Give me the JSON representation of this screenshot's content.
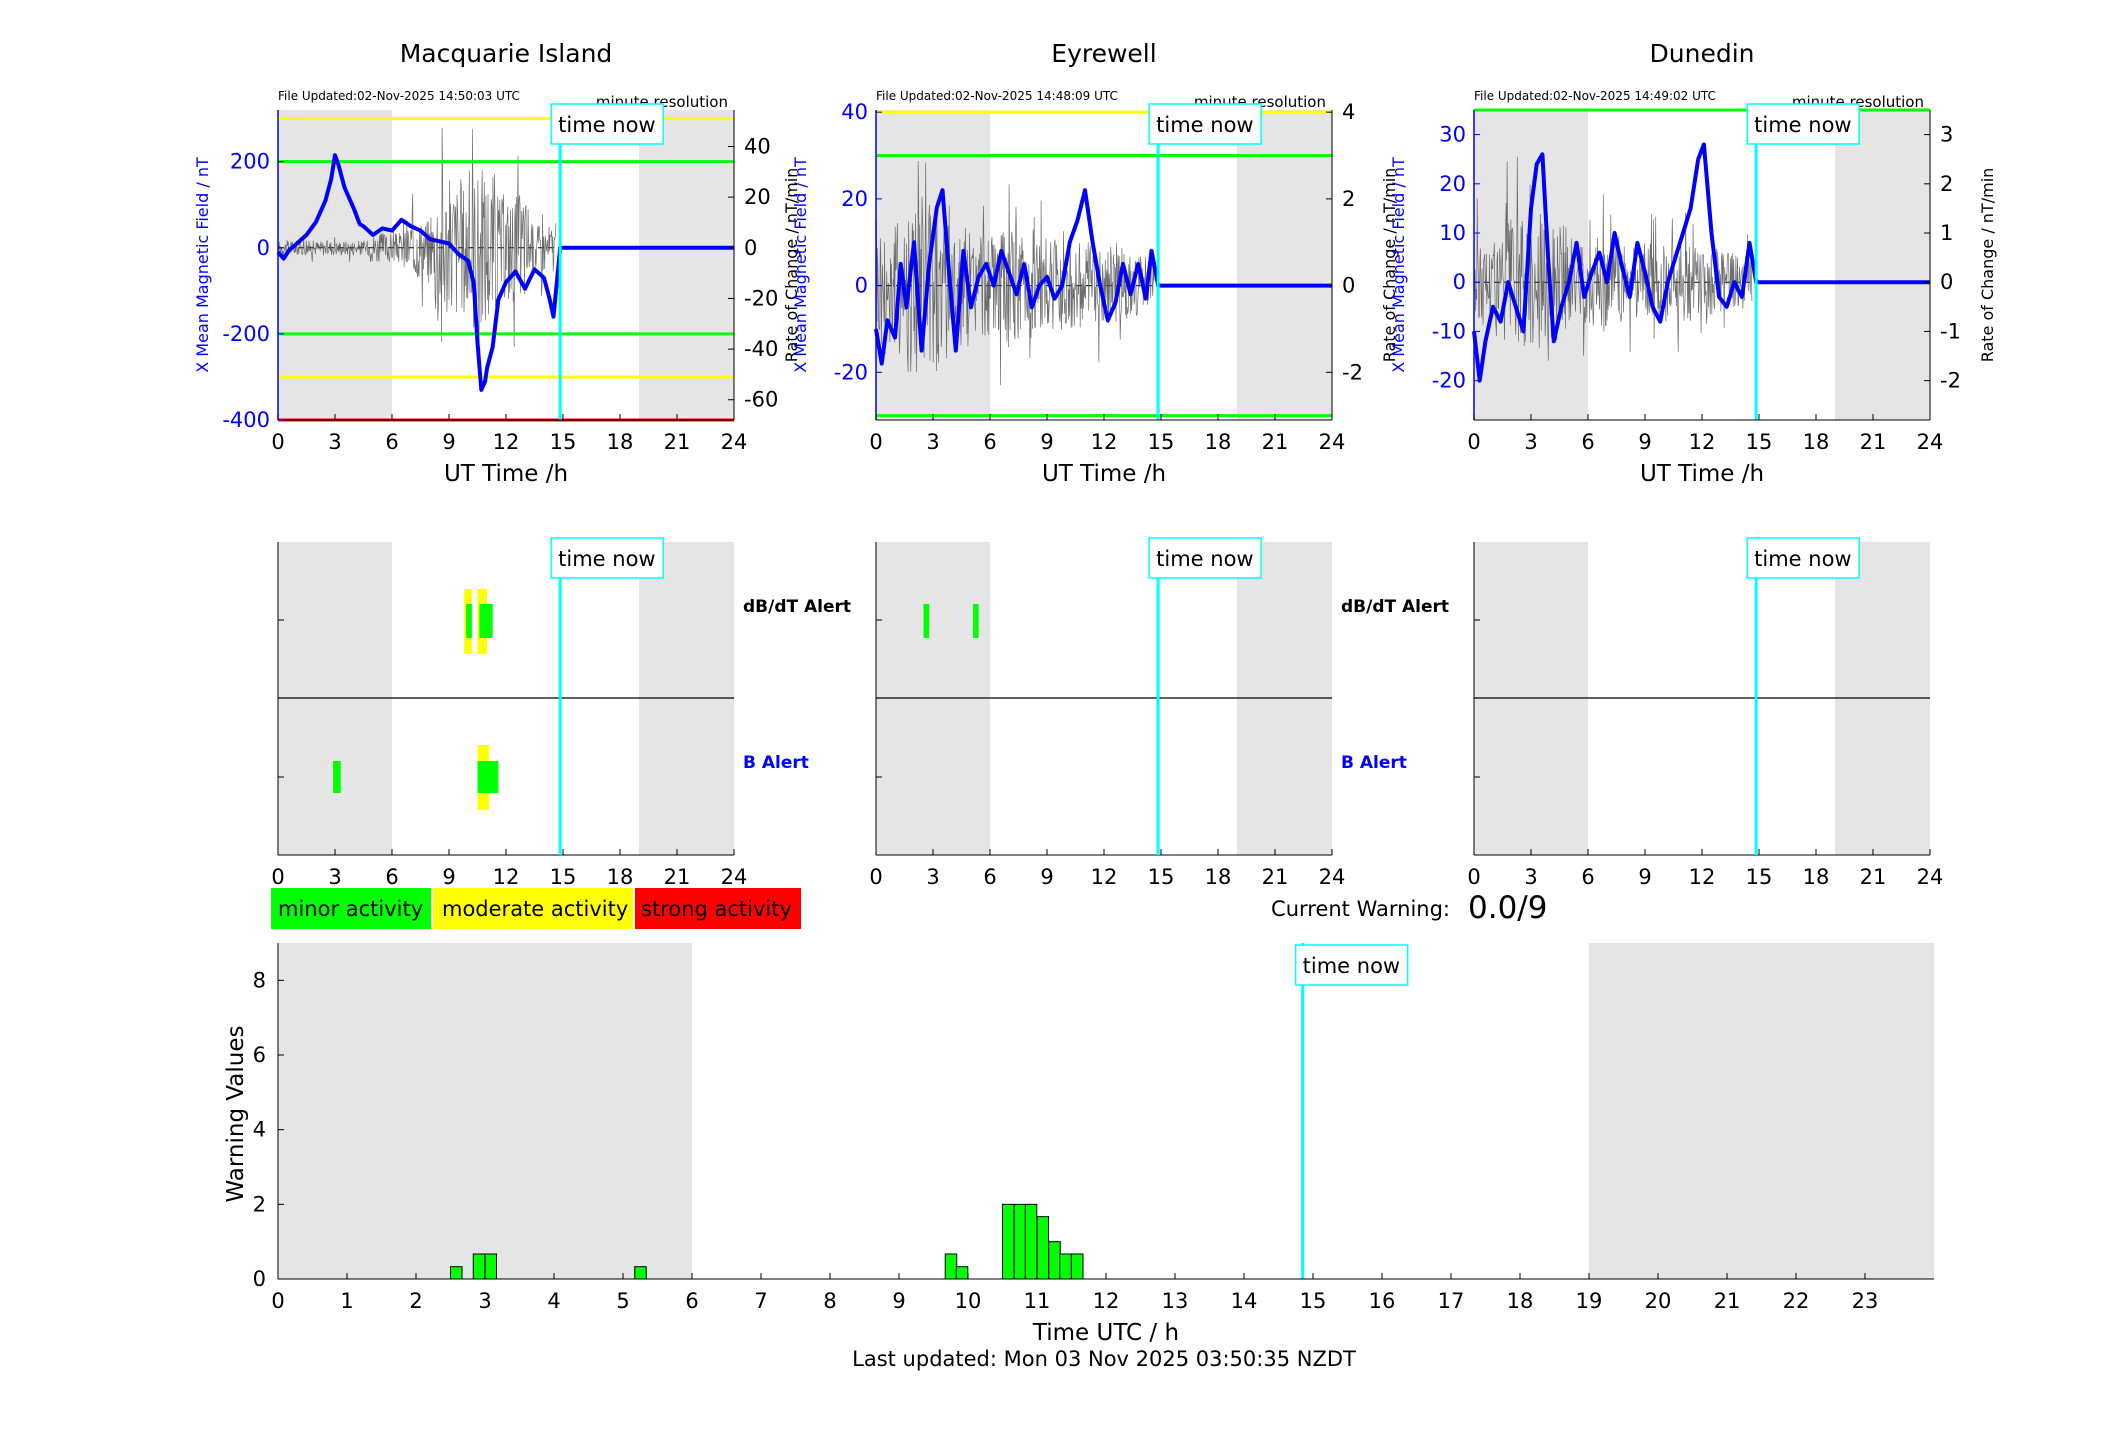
{
  "ticks_hours": [
    "0",
    "3",
    "6",
    "9",
    "12",
    "15",
    "18",
    "21",
    "24"
  ],
  "time_now_label": "time now",
  "time_now_hour": 14.85,
  "dayside_shading": [
    {
      "from": 0,
      "to": 6
    },
    {
      "from": 19,
      "to": 24
    }
  ],
  "magnetometer_panels": [
    {
      "station": "Macquarie Island",
      "file_updated": "File Updated:02-Nov-2025 14:50:03 UTC",
      "resolution": "minute resolution",
      "ylabel": "X Mean Magnetic Field / nT",
      "y2label": "Rate of Change / nT/min",
      "xlabel": "UT Time /h",
      "ylim": [
        -400,
        320
      ],
      "y2lim": [
        -68,
        54.4
      ],
      "yticks": [
        "-400",
        "-200",
        "0",
        "200"
      ],
      "yticks_values": [
        -400,
        -200,
        0,
        200
      ],
      "y2ticks": [
        "-60",
        "-40",
        "-20",
        "0",
        "20",
        "40"
      ],
      "y2ticks_values": [
        -60,
        -40,
        -20,
        0,
        20,
        40
      ],
      "threshold_lines": [
        {
          "value": 300,
          "color": "#ffff00"
        },
        {
          "value": 200,
          "color": "#00ff00"
        },
        {
          "value": -200,
          "color": "#00ff00"
        },
        {
          "value": -300,
          "color": "#ffff00"
        },
        {
          "value": -400,
          "color": "#ff0000"
        }
      ],
      "field_series": {
        "name": "",
        "x": [
          0,
          0.3,
          0.6,
          1.0,
          1.5,
          2.0,
          2.5,
          2.8,
          3.0,
          3.2,
          3.5,
          4.0,
          4.3,
          4.5,
          5.0,
          5.5,
          6.0,
          6.5,
          7.0,
          7.5,
          8.0,
          8.5,
          9.0,
          9.5,
          10.0,
          10.3,
          10.5,
          10.7,
          10.9,
          11.0,
          11.3,
          11.6,
          12.0,
          12.5,
          13.0,
          13.5,
          14.0,
          14.3,
          14.5,
          14.85,
          24
        ],
        "y": [
          -10,
          -25,
          -5,
          10,
          30,
          60,
          110,
          160,
          215,
          190,
          140,
          90,
          55,
          50,
          30,
          45,
          40,
          65,
          50,
          40,
          20,
          15,
          10,
          -15,
          -30,
          -80,
          -220,
          -330,
          -310,
          -280,
          -230,
          -120,
          -80,
          -55,
          -95,
          -50,
          -70,
          -120,
          -160,
          0,
          0
        ]
      },
      "rate_series": {
        "name": "",
        "amplitude": [
          3,
          3,
          3,
          6,
          12,
          28,
          32,
          22,
          10
        ]
      }
    },
    {
      "station": "Eyrewell",
      "file_updated": "File Updated:02-Nov-2025 14:48:09 UTC",
      "resolution": "minute resolution",
      "ylabel": "X Mean Magnetic Field / nT",
      "y2label": "Rate of Change / nT/min",
      "xlabel": "UT Time /h",
      "ylim": [
        -31,
        40.5
      ],
      "y2lim": [
        -3.1,
        4.05
      ],
      "yticks": [
        "-20",
        "0",
        "20",
        "40"
      ],
      "yticks_values": [
        -20,
        0,
        20,
        40
      ],
      "y2ticks": [
        "-2",
        "0",
        "2",
        "4"
      ],
      "y2ticks_values": [
        -2,
        0,
        2,
        4
      ],
      "threshold_lines": [
        {
          "value": 40,
          "color": "#ffff00"
        },
        {
          "value": 30,
          "color": "#00ff00"
        },
        {
          "value": -30,
          "color": "#00ff00"
        }
      ],
      "field_series": {
        "name": "",
        "x": [
          0,
          0.3,
          0.6,
          1.0,
          1.3,
          1.6,
          2.0,
          2.4,
          2.8,
          3.2,
          3.5,
          3.9,
          4.2,
          4.6,
          5.0,
          5.4,
          5.8,
          6.2,
          6.6,
          7.0,
          7.4,
          7.8,
          8.2,
          8.6,
          9.0,
          9.4,
          9.8,
          10.2,
          10.6,
          11.0,
          11.4,
          11.8,
          12.2,
          12.6,
          13.0,
          13.4,
          13.8,
          14.2,
          14.5,
          14.85,
          24
        ],
        "y": [
          -10,
          -18,
          -8,
          -12,
          5,
          -5,
          10,
          -15,
          5,
          18,
          22,
          0,
          -15,
          8,
          -5,
          2,
          5,
          0,
          8,
          3,
          -2,
          5,
          -5,
          0,
          2,
          -3,
          0,
          10,
          15,
          22,
          10,
          0,
          -8,
          -4,
          5,
          -2,
          5,
          -3,
          8,
          0,
          0
        ]
      },
      "rate_series": {
        "name": "",
        "amplitude": [
          1.6,
          2.2,
          1.4,
          1.2,
          1.3,
          1.1,
          1.0,
          0.9,
          0.7
        ]
      }
    },
    {
      "station": "Dunedin",
      "file_updated": "File Updated:02-Nov-2025 14:49:02 UTC",
      "resolution": "minute resolution",
      "ylabel": "X Mean Magnetic Field / nT",
      "y2label": "Rate of Change / nT/min",
      "xlabel": "UT Time /h",
      "ylim": [
        -28,
        35
      ],
      "y2lim": [
        -2.8,
        3.5
      ],
      "yticks": [
        "-20",
        "-10",
        "0",
        "10",
        "20",
        "30"
      ],
      "yticks_values": [
        -20,
        -10,
        0,
        10,
        20,
        30
      ],
      "y2ticks": [
        "-2",
        "-1",
        "0",
        "1",
        "2",
        "3"
      ],
      "y2ticks_values": [
        -2,
        -1,
        0,
        1,
        2,
        3
      ],
      "threshold_lines": [
        {
          "value": 35,
          "color": "#00ff00"
        }
      ],
      "field_series": {
        "name": "",
        "x": [
          0,
          0.3,
          0.6,
          1.0,
          1.4,
          1.8,
          2.2,
          2.6,
          3.0,
          3.3,
          3.6,
          3.9,
          4.2,
          4.6,
          5.0,
          5.4,
          5.8,
          6.2,
          6.6,
          7.0,
          7.4,
          7.8,
          8.2,
          8.6,
          9.0,
          9.4,
          9.8,
          10.2,
          10.6,
          11.0,
          11.4,
          11.8,
          12.1,
          12.5,
          12.9,
          13.3,
          13.7,
          14.1,
          14.5,
          14.85,
          24
        ],
        "y": [
          -10,
          -20,
          -12,
          -5,
          -8,
          0,
          -5,
          -10,
          15,
          24,
          26,
          5,
          -12,
          -5,
          0,
          8,
          -3,
          2,
          6,
          0,
          10,
          3,
          -3,
          8,
          2,
          -5,
          -8,
          0,
          5,
          10,
          15,
          25,
          28,
          10,
          -3,
          -5,
          0,
          -3,
          8,
          0,
          0
        ]
      },
      "rate_series": {
        "name": "",
        "amplitude": [
          0.9,
          1.3,
          1.2,
          0.9,
          1.0,
          0.8,
          0.8,
          0.7,
          0.6
        ]
      }
    }
  ],
  "alert_panels": [
    {
      "dbdt_label": "dB/dT Alert",
      "b_label": "B Alert",
      "dbdt_bars": [
        {
          "start": 9.8,
          "end": 10.2,
          "color": "#ffff00"
        },
        {
          "start": 10.5,
          "end": 11.0,
          "color": "#ffff00"
        },
        {
          "start": 9.9,
          "end": 10.2,
          "color": "#00ff00"
        },
        {
          "start": 10.6,
          "end": 11.3,
          "color": "#00ff00"
        }
      ],
      "b_bars": [
        {
          "start": 2.9,
          "end": 3.3,
          "color": "#00ff00"
        },
        {
          "start": 10.5,
          "end": 11.1,
          "color": "#ffff00"
        },
        {
          "start": 10.5,
          "end": 11.6,
          "color": "#00ff00"
        }
      ]
    },
    {
      "dbdt_label": "dB/dT Alert",
      "b_label": "B Alert",
      "dbdt_bars": [
        {
          "start": 2.5,
          "end": 2.8,
          "color": "#00ff00"
        },
        {
          "start": 5.1,
          "end": 5.4,
          "color": "#00ff00"
        }
      ],
      "b_bars": []
    },
    {
      "dbdt_label": "",
      "b_label": "",
      "dbdt_bars": [],
      "b_bars": []
    }
  ],
  "legend": [
    {
      "label": "minor activity",
      "color": "#00ff00"
    },
    {
      "label": "moderate activity",
      "color": "#ffff00"
    },
    {
      "label": "strong activity",
      "color": "#ff0000"
    }
  ],
  "current_warning": {
    "label": "Current Warning:",
    "value": "0.0/9"
  },
  "chart_data": {
    "type": "bar",
    "title": "",
    "xlabel": "Time UTC / h",
    "ylabel": "Warning Values",
    "xlim": [
      0,
      24
    ],
    "ylim": [
      0,
      9
    ],
    "xticks": [
      "0",
      "1",
      "2",
      "3",
      "4",
      "5",
      "6",
      "7",
      "8",
      "9",
      "10",
      "11",
      "12",
      "13",
      "14",
      "15",
      "16",
      "17",
      "18",
      "19",
      "20",
      "21",
      "22",
      "23"
    ],
    "yticks": [
      "0",
      "2",
      "4",
      "6",
      "8"
    ],
    "bin_width_h": 0.1667,
    "bars": [
      {
        "x": 2.5,
        "value": 0.33
      },
      {
        "x": 2.83,
        "value": 0.67
      },
      {
        "x": 3.0,
        "value": 0.67
      },
      {
        "x": 5.17,
        "value": 0.33
      },
      {
        "x": 9.67,
        "value": 0.67
      },
      {
        "x": 9.83,
        "value": 0.33
      },
      {
        "x": 10.5,
        "value": 2.0
      },
      {
        "x": 10.67,
        "value": 2.0
      },
      {
        "x": 10.83,
        "value": 2.0
      },
      {
        "x": 11.0,
        "value": 1.67
      },
      {
        "x": 11.17,
        "value": 1.0
      },
      {
        "x": 11.33,
        "value": 0.67
      },
      {
        "x": 11.5,
        "value": 0.67
      }
    ]
  },
  "last_updated": "Last updated: Mon 03 Nov 2025 03:50:35 NZDT"
}
